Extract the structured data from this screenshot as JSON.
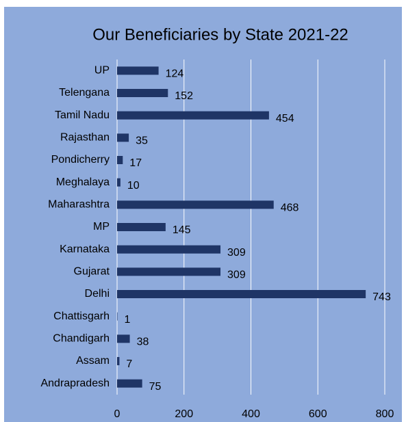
{
  "chart_data": {
    "type": "barh",
    "title": "Our Beneficiaries by State 2021-22",
    "categories": [
      "UP",
      "Telengana",
      "Tamil Nadu",
      "Rajasthan",
      "Pondicherry",
      "Meghalaya",
      "Maharashtra",
      "MP",
      "Karnataka",
      "Gujarat",
      "Delhi",
      "Chattisgarh",
      "Chandigarh",
      "Assam",
      "Andrapradesh"
    ],
    "values": [
      124,
      152,
      454,
      35,
      17,
      10,
      468,
      145,
      309,
      309,
      743,
      1,
      38,
      7,
      75
    ],
    "color": "#1f3566",
    "xlim": [
      0,
      800
    ],
    "xticks": [
      0,
      200,
      400,
      600,
      800
    ],
    "grid": true
  }
}
